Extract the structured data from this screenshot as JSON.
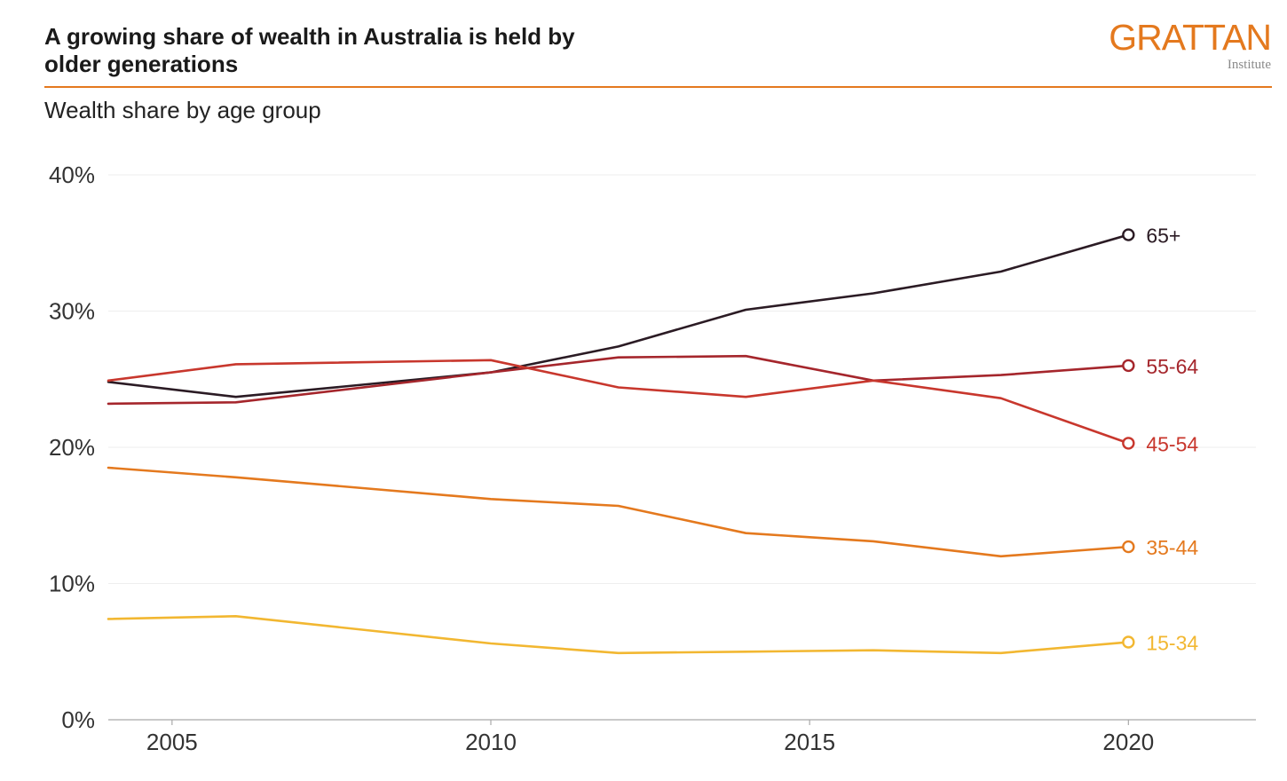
{
  "header": {
    "title_line1": "A growing share of wealth in Australia is held by",
    "title_line2": "older generations",
    "subtitle": "Wealth share by age group"
  },
  "logo": {
    "wordmark": "GRATTAN",
    "sub": "Institute",
    "color": "#e4791e"
  },
  "chart_data": {
    "type": "line",
    "title": "A growing share of wealth in Australia is held by older generations",
    "subtitle": "Wealth share by age group",
    "xlabel": "",
    "ylabel": "",
    "xlim": [
      2004,
      2022
    ],
    "ylim": [
      0,
      40
    ],
    "x_ticks": [
      2005,
      2010,
      2015,
      2020
    ],
    "y_ticks": [
      0,
      10,
      20,
      30,
      40
    ],
    "y_tick_labels": [
      "0%",
      "10%",
      "20%",
      "30%",
      "40%"
    ],
    "grid": "horizontal",
    "legend": "direct labels at line ends (right)",
    "x": [
      2004,
      2006,
      2010,
      2012,
      2014,
      2016,
      2018,
      2020
    ],
    "series": [
      {
        "name": "65+",
        "color": "#2b1b24",
        "values": [
          24.8,
          23.7,
          25.5,
          27.4,
          30.1,
          31.3,
          32.9,
          35.6
        ]
      },
      {
        "name": "55-64",
        "color": "#a5262c",
        "values": [
          23.2,
          23.3,
          25.5,
          26.6,
          26.7,
          24.9,
          25.3,
          26.0
        ]
      },
      {
        "name": "45-54",
        "color": "#c8372d",
        "values": [
          24.9,
          26.1,
          26.4,
          24.4,
          23.7,
          24.9,
          23.6,
          20.3
        ]
      },
      {
        "name": "35-44",
        "color": "#e4791e",
        "values": [
          18.5,
          17.8,
          16.2,
          15.7,
          13.7,
          13.1,
          12.0,
          12.7
        ]
      },
      {
        "name": "15-34",
        "color": "#f2b731",
        "values": [
          7.4,
          7.6,
          5.6,
          4.9,
          5.0,
          5.1,
          4.9,
          5.7
        ]
      }
    ]
  }
}
